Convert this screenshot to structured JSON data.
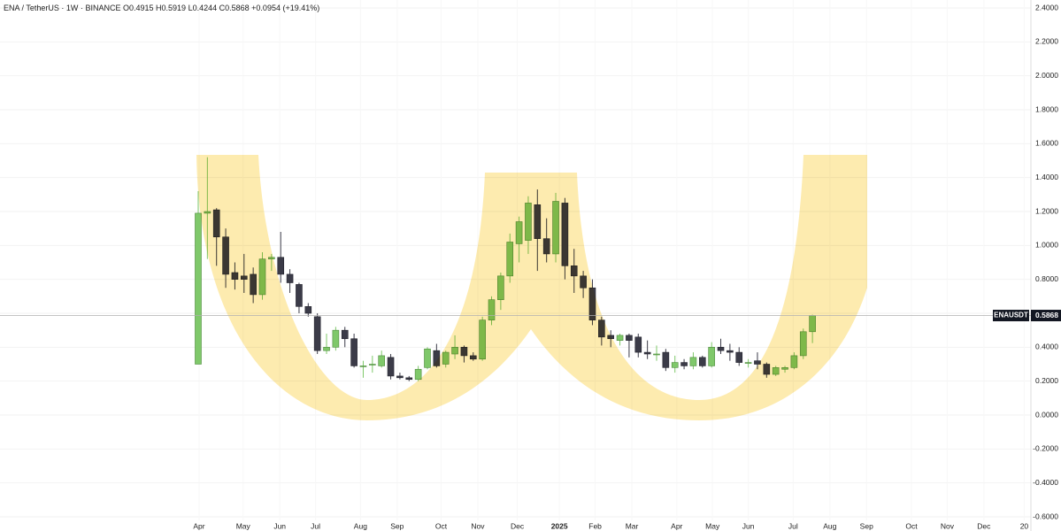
{
  "header": {
    "symbol": "ENA / TetherUS",
    "interval": "1W",
    "exchange": "BINANCE",
    "open": "O0.4915",
    "high": "H0.5919",
    "low": "L0.4244",
    "close": "C0.5868",
    "change": "+0.0954 (+19.41%)"
  },
  "chart_data": {
    "type": "candlestick",
    "categories": [
      null,
      null,
      null,
      null,
      null,
      null,
      null,
      null,
      null,
      null,
      null,
      null,
      null,
      null,
      null,
      null,
      null,
      null,
      null,
      null,
      null,
      null,
      null,
      null,
      null,
      null,
      null,
      null,
      null,
      null,
      null,
      null,
      null,
      null,
      null,
      null,
      null,
      null,
      null,
      null,
      null,
      null,
      null,
      null,
      null,
      null,
      null,
      null,
      null,
      null,
      null,
      null,
      null,
      null,
      null,
      null,
      null,
      null,
      null,
      null,
      null,
      null,
      null,
      null,
      null,
      null,
      null,
      null
    ],
    "open": [
      0.3,
      1.19,
      1.21,
      1.05,
      0.84,
      0.82,
      0.83,
      0.71,
      0.92,
      0.93,
      0.83,
      0.77,
      0.64,
      0.58,
      0.38,
      0.4,
      0.5,
      0.45,
      0.29,
      0.3,
      0.29,
      0.34,
      0.23,
      0.22,
      0.21,
      0.28,
      0.38,
      0.3,
      0.36,
      0.4,
      0.35,
      0.33,
      0.56,
      0.68,
      0.82,
      1.01,
      1.03,
      1.24,
      1.04,
      0.95,
      1.25,
      0.88,
      0.82,
      0.75,
      0.56,
      0.47,
      0.44,
      0.47,
      0.46,
      0.37,
      0.36,
      0.37,
      0.28,
      0.31,
      0.29,
      0.34,
      0.29,
      0.4,
      0.38,
      0.37,
      0.31,
      0.32,
      0.3,
      0.24,
      0.27,
      0.28,
      0.35,
      0.4915
    ],
    "high": [
      1.32,
      1.52,
      1.22,
      1.1,
      0.9,
      0.95,
      0.87,
      0.96,
      0.95,
      1.08,
      0.86,
      0.78,
      0.66,
      0.6,
      0.48,
      0.52,
      0.52,
      0.48,
      0.32,
      0.35,
      0.38,
      0.36,
      0.25,
      0.23,
      0.29,
      0.4,
      0.42,
      0.38,
      0.47,
      0.41,
      0.37,
      0.58,
      0.7,
      0.84,
      1.07,
      1.17,
      1.29,
      1.33,
      1.16,
      1.31,
      1.28,
      0.98,
      0.85,
      0.8,
      0.58,
      0.5,
      0.48,
      0.48,
      0.48,
      0.44,
      0.41,
      0.39,
      0.35,
      0.33,
      0.37,
      0.35,
      0.43,
      0.45,
      0.42,
      0.4,
      0.33,
      0.37,
      0.31,
      0.29,
      0.29,
      0.37,
      0.51,
      0.5919
    ],
    "low": [
      0.3,
      0.92,
      0.88,
      0.75,
      0.74,
      0.72,
      0.66,
      0.68,
      0.85,
      0.78,
      0.72,
      0.6,
      0.58,
      0.36,
      0.36,
      0.38,
      0.4,
      0.28,
      0.22,
      0.25,
      0.28,
      0.21,
      0.21,
      0.2,
      0.2,
      0.27,
      0.28,
      0.28,
      0.33,
      0.31,
      0.32,
      0.32,
      0.53,
      0.62,
      0.78,
      0.9,
      0.95,
      0.85,
      0.9,
      0.9,
      0.8,
      0.72,
      0.69,
      0.53,
      0.41,
      0.4,
      0.41,
      0.34,
      0.34,
      0.33,
      0.32,
      0.26,
      0.25,
      0.27,
      0.27,
      0.28,
      0.28,
      0.36,
      0.32,
      0.29,
      0.28,
      0.27,
      0.22,
      0.23,
      0.25,
      0.27,
      0.33,
      0.4244
    ],
    "close": [
      1.19,
      1.2,
      1.05,
      0.83,
      0.8,
      0.8,
      0.71,
      0.92,
      0.93,
      0.83,
      0.78,
      0.64,
      0.6,
      0.38,
      0.4,
      0.5,
      0.45,
      0.29,
      0.29,
      0.3,
      0.35,
      0.23,
      0.22,
      0.21,
      0.27,
      0.39,
      0.29,
      0.37,
      0.4,
      0.35,
      0.33,
      0.56,
      0.68,
      0.82,
      1.02,
      1.14,
      1.25,
      1.04,
      0.95,
      1.26,
      0.88,
      0.82,
      0.75,
      0.56,
      0.46,
      0.45,
      0.47,
      0.44,
      0.37,
      0.36,
      0.36,
      0.28,
      0.31,
      0.29,
      0.34,
      0.29,
      0.4,
      0.38,
      0.37,
      0.31,
      0.31,
      0.3,
      0.24,
      0.28,
      0.28,
      0.35,
      0.4915,
      0.5868
    ],
    "up_color": "#7fc86a",
    "down_color": "#3b3b48",
    "xlim": [
      -21.62,
      90.83
    ],
    "xticks": [
      {
        "value": 0.1,
        "label": "Apr"
      },
      {
        "value": 4.9,
        "label": "May"
      },
      {
        "value": 8.9,
        "label": "Jun"
      },
      {
        "value": 12.8,
        "label": "Jul"
      },
      {
        "value": 17.7,
        "label": "Aug"
      },
      {
        "value": 21.7,
        "label": "Sep"
      },
      {
        "value": 26.5,
        "label": "Oct"
      },
      {
        "value": 30.5,
        "label": "Nov"
      },
      {
        "value": 34.8,
        "label": "Dec"
      },
      {
        "value": 39.4,
        "label": "2025"
      },
      {
        "value": 43.3,
        "label": "Feb"
      },
      {
        "value": 47.3,
        "label": "Mar"
      },
      {
        "value": 52.2,
        "label": "Apr"
      },
      {
        "value": 56.1,
        "label": "May"
      },
      {
        "value": 60.0,
        "label": "Jun"
      },
      {
        "value": 64.9,
        "label": "Jul"
      },
      {
        "value": 68.9,
        "label": "Aug"
      },
      {
        "value": 72.9,
        "label": "Sep"
      },
      {
        "value": 77.8,
        "label": "Oct"
      },
      {
        "value": 81.7,
        "label": "Nov"
      },
      {
        "value": 85.7,
        "label": "Dec"
      },
      {
        "value": 90.1,
        "label": "20"
      }
    ],
    "ylim": [
      -0.6,
      2.4
    ],
    "yticks": [
      {
        "value": 2.4,
        "label": "2.4000"
      },
      {
        "value": 2.2,
        "label": "2.2000"
      },
      {
        "value": 2.0,
        "label": "2.0000"
      },
      {
        "value": 1.8,
        "label": "1.8000"
      },
      {
        "value": 1.6,
        "label": "1.6000"
      },
      {
        "value": 1.4,
        "label": "1.4000"
      },
      {
        "value": 1.2,
        "label": "1.2000"
      },
      {
        "value": 1.0,
        "label": "1.0000"
      },
      {
        "value": 0.8,
        "label": "0.8000"
      },
      {
        "value": 0.6,
        "label": "0.6000"
      },
      {
        "value": 0.4,
        "label": "0.4000"
      },
      {
        "value": 0.2,
        "label": "0.2000"
      },
      {
        "value": 0,
        "label": "0.0000"
      },
      {
        "value": -0.2,
        "label": "-0.2000"
      },
      {
        "value": -0.4,
        "label": "-0.4000"
      },
      {
        "value": -0.6,
        "label": "-0.6000"
      }
    ],
    "grid": true,
    "last_price": {
      "name": "ENAUSDT",
      "value": 0.5868,
      "label": "0.5868"
    }
  }
}
